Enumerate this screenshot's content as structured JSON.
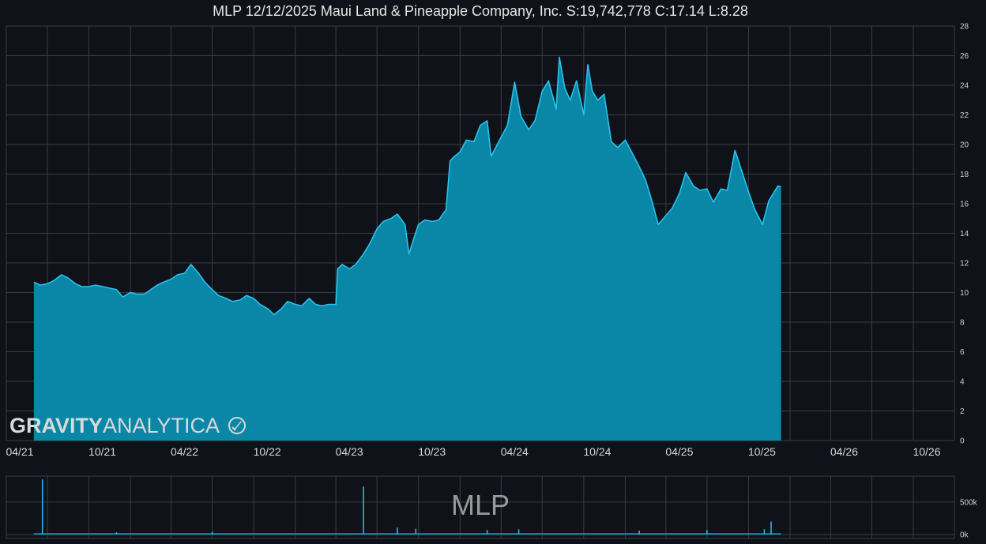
{
  "title": "MLP 12/12/2025 Maui Land & Pineapple Company, Inc. S:19,742,778 C:17.14 L:8.28",
  "watermark": {
    "brand_bold": "GRAVITY",
    "brand_light": "ANALYTICA",
    "ticker": "MLP"
  },
  "colors": {
    "background": "#0f1218",
    "grid": "#3a3d44",
    "line": "#27c3ee",
    "fill": "#0a86a6",
    "volume": "#22b9e3"
  },
  "chart_data": [
    {
      "type": "area",
      "x_label": "",
      "y_label": "",
      "xlim": [
        "2021-04-01",
        "2026-12-31"
      ],
      "ylim": [
        0,
        28
      ],
      "y_ticks": [
        0,
        2,
        4,
        6,
        8,
        10,
        12,
        14,
        16,
        18,
        20,
        22,
        24,
        26,
        28
      ],
      "x_tick_labels": [
        {
          "date": "2021-04-01",
          "label": "04/21"
        },
        {
          "date": "2021-10-01",
          "label": "10/21"
        },
        {
          "date": "2022-04-01",
          "label": "04/22"
        },
        {
          "date": "2022-10-01",
          "label": "10/22"
        },
        {
          "date": "2023-04-01",
          "label": "04/23"
        },
        {
          "date": "2023-10-01",
          "label": "10/23"
        },
        {
          "date": "2024-04-01",
          "label": "04/24"
        },
        {
          "date": "2024-10-01",
          "label": "10/24"
        },
        {
          "date": "2025-04-01",
          "label": "04/25"
        },
        {
          "date": "2025-10-01",
          "label": "10/25"
        },
        {
          "date": "2026-04-01",
          "label": "04/26"
        },
        {
          "date": "2026-10-01",
          "label": "10/26"
        }
      ],
      "grid": true,
      "series": [
        {
          "points": [
            [
              "2021-06-01",
              10.7
            ],
            [
              "2021-06-15",
              10.5
            ],
            [
              "2021-07-01",
              10.6
            ],
            [
              "2021-07-15",
              10.8
            ],
            [
              "2021-08-01",
              11.2
            ],
            [
              "2021-08-15",
              11.0
            ],
            [
              "2021-09-01",
              10.6
            ],
            [
              "2021-09-15",
              10.4
            ],
            [
              "2021-10-01",
              10.4
            ],
            [
              "2021-10-15",
              10.5
            ],
            [
              "2021-11-01",
              10.4
            ],
            [
              "2021-11-15",
              10.3
            ],
            [
              "2021-12-01",
              10.2
            ],
            [
              "2021-12-15",
              9.7
            ],
            [
              "2022-01-01",
              10.0
            ],
            [
              "2022-01-15",
              9.9
            ],
            [
              "2022-02-01",
              9.9
            ],
            [
              "2022-02-15",
              10.2
            ],
            [
              "2022-03-01",
              10.5
            ],
            [
              "2022-03-15",
              10.7
            ],
            [
              "2022-04-01",
              10.9
            ],
            [
              "2022-04-15",
              11.2
            ],
            [
              "2022-05-01",
              11.3
            ],
            [
              "2022-05-15",
              11.9
            ],
            [
              "2022-06-01",
              11.3
            ],
            [
              "2022-06-15",
              10.7
            ],
            [
              "2022-07-01",
              10.2
            ],
            [
              "2022-07-15",
              9.8
            ],
            [
              "2022-08-01",
              9.6
            ],
            [
              "2022-08-15",
              9.4
            ],
            [
              "2022-09-01",
              9.5
            ],
            [
              "2022-09-15",
              9.8
            ],
            [
              "2022-10-01",
              9.6
            ],
            [
              "2022-10-15",
              9.2
            ],
            [
              "2022-11-01",
              8.9
            ],
            [
              "2022-11-15",
              8.5
            ],
            [
              "2022-12-01",
              8.9
            ],
            [
              "2022-12-15",
              9.4
            ],
            [
              "2023-01-01",
              9.2
            ],
            [
              "2023-01-15",
              9.1
            ],
            [
              "2023-02-01",
              9.6
            ],
            [
              "2023-02-15",
              9.2
            ],
            [
              "2023-03-01",
              9.1
            ],
            [
              "2023-03-15",
              9.2
            ],
            [
              "2023-04-01",
              9.2
            ],
            [
              "2023-04-05",
              11.6
            ],
            [
              "2023-04-15",
              11.9
            ],
            [
              "2023-05-01",
              11.6
            ],
            [
              "2023-05-15",
              11.9
            ],
            [
              "2023-06-01",
              12.6
            ],
            [
              "2023-06-15",
              13.3
            ],
            [
              "2023-07-01",
              14.3
            ],
            [
              "2023-07-15",
              14.8
            ],
            [
              "2023-08-01",
              15.0
            ],
            [
              "2023-08-15",
              15.3
            ],
            [
              "2023-09-01",
              14.6
            ],
            [
              "2023-09-10",
              12.6
            ],
            [
              "2023-09-20",
              13.6
            ],
            [
              "2023-10-01",
              14.6
            ],
            [
              "2023-10-15",
              14.9
            ],
            [
              "2023-11-01",
              14.8
            ],
            [
              "2023-11-15",
              14.9
            ],
            [
              "2023-12-01",
              15.6
            ],
            [
              "2023-12-10",
              18.9
            ],
            [
              "2023-12-20",
              19.2
            ],
            [
              "2024-01-01",
              19.5
            ],
            [
              "2024-01-15",
              20.3
            ],
            [
              "2024-02-01",
              20.2
            ],
            [
              "2024-02-15",
              21.3
            ],
            [
              "2024-03-01",
              21.6
            ],
            [
              "2024-03-10",
              19.2
            ],
            [
              "2024-03-20",
              19.8
            ],
            [
              "2024-04-01",
              20.5
            ],
            [
              "2024-04-15",
              21.3
            ],
            [
              "2024-05-01",
              24.2
            ],
            [
              "2024-05-15",
              21.9
            ],
            [
              "2024-06-01",
              21.0
            ],
            [
              "2024-06-15",
              21.6
            ],
            [
              "2024-07-01",
              23.6
            ],
            [
              "2024-07-15",
              24.3
            ],
            [
              "2024-08-01",
              22.4
            ],
            [
              "2024-08-08",
              25.9
            ],
            [
              "2024-08-20",
              23.8
            ],
            [
              "2024-09-01",
              23.0
            ],
            [
              "2024-09-15",
              24.3
            ],
            [
              "2024-10-01",
              22.0
            ],
            [
              "2024-10-10",
              25.4
            ],
            [
              "2024-10-20",
              23.6
            ],
            [
              "2024-11-01",
              23.0
            ],
            [
              "2024-11-15",
              23.4
            ],
            [
              "2024-12-01",
              20.2
            ],
            [
              "2024-12-15",
              19.8
            ],
            [
              "2025-01-01",
              20.3
            ],
            [
              "2025-01-15",
              19.5
            ],
            [
              "2025-02-01",
              18.5
            ],
            [
              "2025-02-15",
              17.6
            ],
            [
              "2025-03-01",
              16.2
            ],
            [
              "2025-03-15",
              14.6
            ],
            [
              "2025-04-01",
              15.2
            ],
            [
              "2025-04-15",
              15.7
            ],
            [
              "2025-05-01",
              16.7
            ],
            [
              "2025-05-15",
              18.1
            ],
            [
              "2025-06-01",
              17.2
            ],
            [
              "2025-06-15",
              16.9
            ],
            [
              "2025-07-01",
              17.0
            ],
            [
              "2025-07-15",
              16.1
            ],
            [
              "2025-08-01",
              17.0
            ],
            [
              "2025-08-15",
              16.9
            ],
            [
              "2025-09-01",
              19.6
            ],
            [
              "2025-09-15",
              18.3
            ],
            [
              "2025-10-01",
              16.8
            ],
            [
              "2025-10-15",
              15.6
            ],
            [
              "2025-11-01",
              14.6
            ],
            [
              "2025-11-15",
              16.2
            ],
            [
              "2025-12-05",
              17.2
            ],
            [
              "2025-12-12",
              17.14
            ]
          ]
        }
      ]
    },
    {
      "type": "bar",
      "x_label": "",
      "y_label": "",
      "ylim": [
        0,
        900000
      ],
      "y_ticks": [
        {
          "value": 0,
          "label": "0k"
        },
        {
          "value": 500000,
          "label": "500k"
        }
      ],
      "baseline": 20000,
      "spikes": [
        [
          "2021-06-20",
          850000
        ],
        [
          "2023-06-01",
          740000
        ],
        [
          "2023-08-15",
          110000
        ],
        [
          "2023-09-25",
          90000
        ],
        [
          "2024-03-01",
          70000
        ],
        [
          "2024-05-10",
          80000
        ],
        [
          "2025-02-01",
          60000
        ],
        [
          "2025-07-01",
          70000
        ],
        [
          "2025-11-20",
          200000
        ],
        [
          "2025-11-05",
          80000
        ],
        [
          "2022-07-01",
          40000
        ],
        [
          "2021-12-01",
          35000
        ]
      ]
    }
  ]
}
